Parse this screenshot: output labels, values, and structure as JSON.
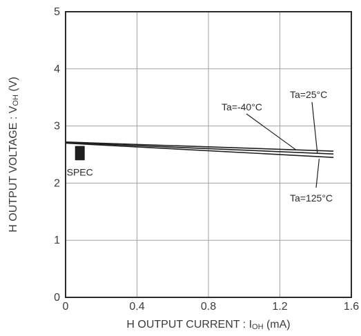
{
  "chart_data": {
    "type": "line",
    "xlabel_main": "H OUTPUT CURRENT : I",
    "xlabel_sub": "OH",
    "xlabel_unit": " (mA)",
    "ylabel_main": "H OUTPUT VOLTAGE : V",
    "ylabel_sub": "OH",
    "ylabel_unit": " (V)",
    "xlim": [
      0,
      1.6
    ],
    "ylim": [
      0,
      5
    ],
    "x_ticks": [
      "0",
      "0.4",
      "0.8",
      "1.2",
      "1.6"
    ],
    "y_ticks": [
      "0",
      "1",
      "2",
      "3",
      "4",
      "5"
    ],
    "grid": true,
    "series": [
      {
        "name": "Ta=-40°C",
        "x": [
          0,
          1.5
        ],
        "y": [
          2.72,
          2.56
        ]
      },
      {
        "name": "Ta=25°C",
        "x": [
          0,
          1.5
        ],
        "y": [
          2.71,
          2.51
        ]
      },
      {
        "name": "Ta=125°C",
        "x": [
          0,
          1.5
        ],
        "y": [
          2.7,
          2.45
        ]
      }
    ],
    "spec": {
      "label": "SPEC",
      "x": 0.08,
      "y_range": [
        2.4,
        2.65
      ]
    }
  }
}
